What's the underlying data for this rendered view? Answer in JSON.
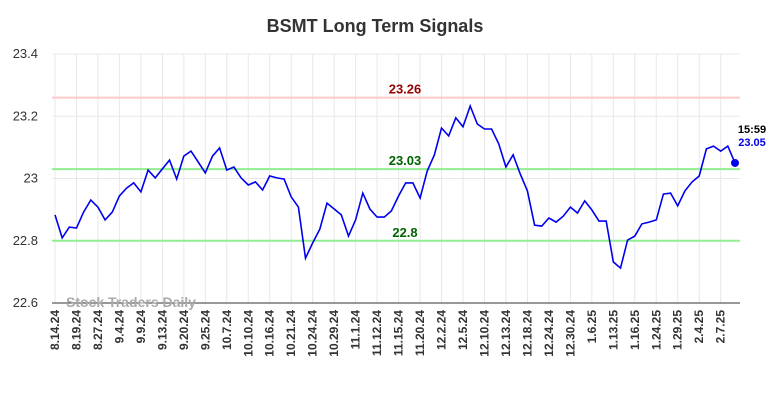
{
  "chart_data": {
    "type": "line",
    "title": "BSMT Long Term Signals",
    "watermark": "Stock Traders Daily",
    "categories": [
      "8.14.24",
      null,
      null,
      "8.19.24",
      null,
      null,
      "8.27.24",
      null,
      null,
      "9.4.24",
      null,
      null,
      "9.9.24",
      null,
      null,
      "9.13.24",
      null,
      null,
      "9.20.24",
      null,
      null,
      "9.25.24",
      null,
      null,
      "10.7.24",
      null,
      null,
      "10.10.24",
      null,
      null,
      "10.16.24",
      null,
      null,
      "10.21.24",
      null,
      null,
      "10.24.24",
      null,
      null,
      "10.29.24",
      null,
      null,
      "11.1.24",
      null,
      null,
      "11.12.24",
      null,
      null,
      "11.15.24",
      null,
      null,
      "11.20.24",
      null,
      null,
      "12.2.24",
      null,
      null,
      "12.5.24",
      null,
      null,
      "12.10.24",
      null,
      null,
      "12.13.24",
      null,
      null,
      "12.18.24",
      null,
      null,
      "12.24.24",
      null,
      null,
      "12.30.24",
      null,
      null,
      "1.6.25",
      null,
      null,
      "1.13.25",
      null,
      null,
      "1.16.25",
      null,
      null,
      "1.24.25",
      null,
      null,
      "1.29.25",
      null,
      null,
      "2.4.25",
      null,
      null,
      "2.7.25",
      null,
      null
    ],
    "values": [
      22.883,
      22.809,
      22.844,
      22.841,
      22.892,
      22.931,
      22.908,
      22.867,
      22.892,
      22.944,
      22.969,
      22.986,
      22.957,
      23.027,
      23.002,
      23.031,
      23.059,
      22.998,
      23.072,
      23.088,
      23.053,
      23.018,
      23.072,
      23.098,
      23.027,
      23.037,
      23.002,
      22.979,
      22.989,
      22.963,
      23.008,
      23.002,
      22.998,
      22.941,
      22.908,
      22.744,
      22.793,
      22.837,
      22.921,
      22.902,
      22.883,
      22.815,
      22.867,
      22.953,
      22.902,
      22.876,
      22.876,
      22.896,
      22.944,
      22.986,
      22.986,
      22.937,
      23.024,
      23.076,
      23.162,
      23.137,
      23.195,
      23.166,
      23.233,
      23.175,
      23.159,
      23.159,
      23.111,
      23.037,
      23.076,
      23.014,
      22.96,
      22.85,
      22.847,
      22.873,
      22.86,
      22.879,
      22.908,
      22.889,
      22.928,
      22.899,
      22.863,
      22.863,
      22.732,
      22.712,
      22.802,
      22.815,
      22.854,
      22.86,
      22.867,
      22.95,
      22.953,
      22.912,
      22.96,
      22.989,
      23.008,
      23.095,
      23.104,
      23.088,
      23.104,
      23.05
    ],
    "color": "#0000ee",
    "last_time": "15:59",
    "hlines": [
      {
        "value": 23.26,
        "color": "#ffc8c8",
        "text_color": "#990000"
      },
      {
        "value": 23.03,
        "color": "#90ee90",
        "text_color": "#006400"
      },
      {
        "value": 22.8,
        "color": "#90ee90",
        "text_color": "#006400"
      }
    ],
    "ylim": [
      22.6,
      23.4
    ],
    "yticks": [
      22.6,
      22.8,
      23,
      23.2,
      23.4
    ],
    "grid": true
  }
}
